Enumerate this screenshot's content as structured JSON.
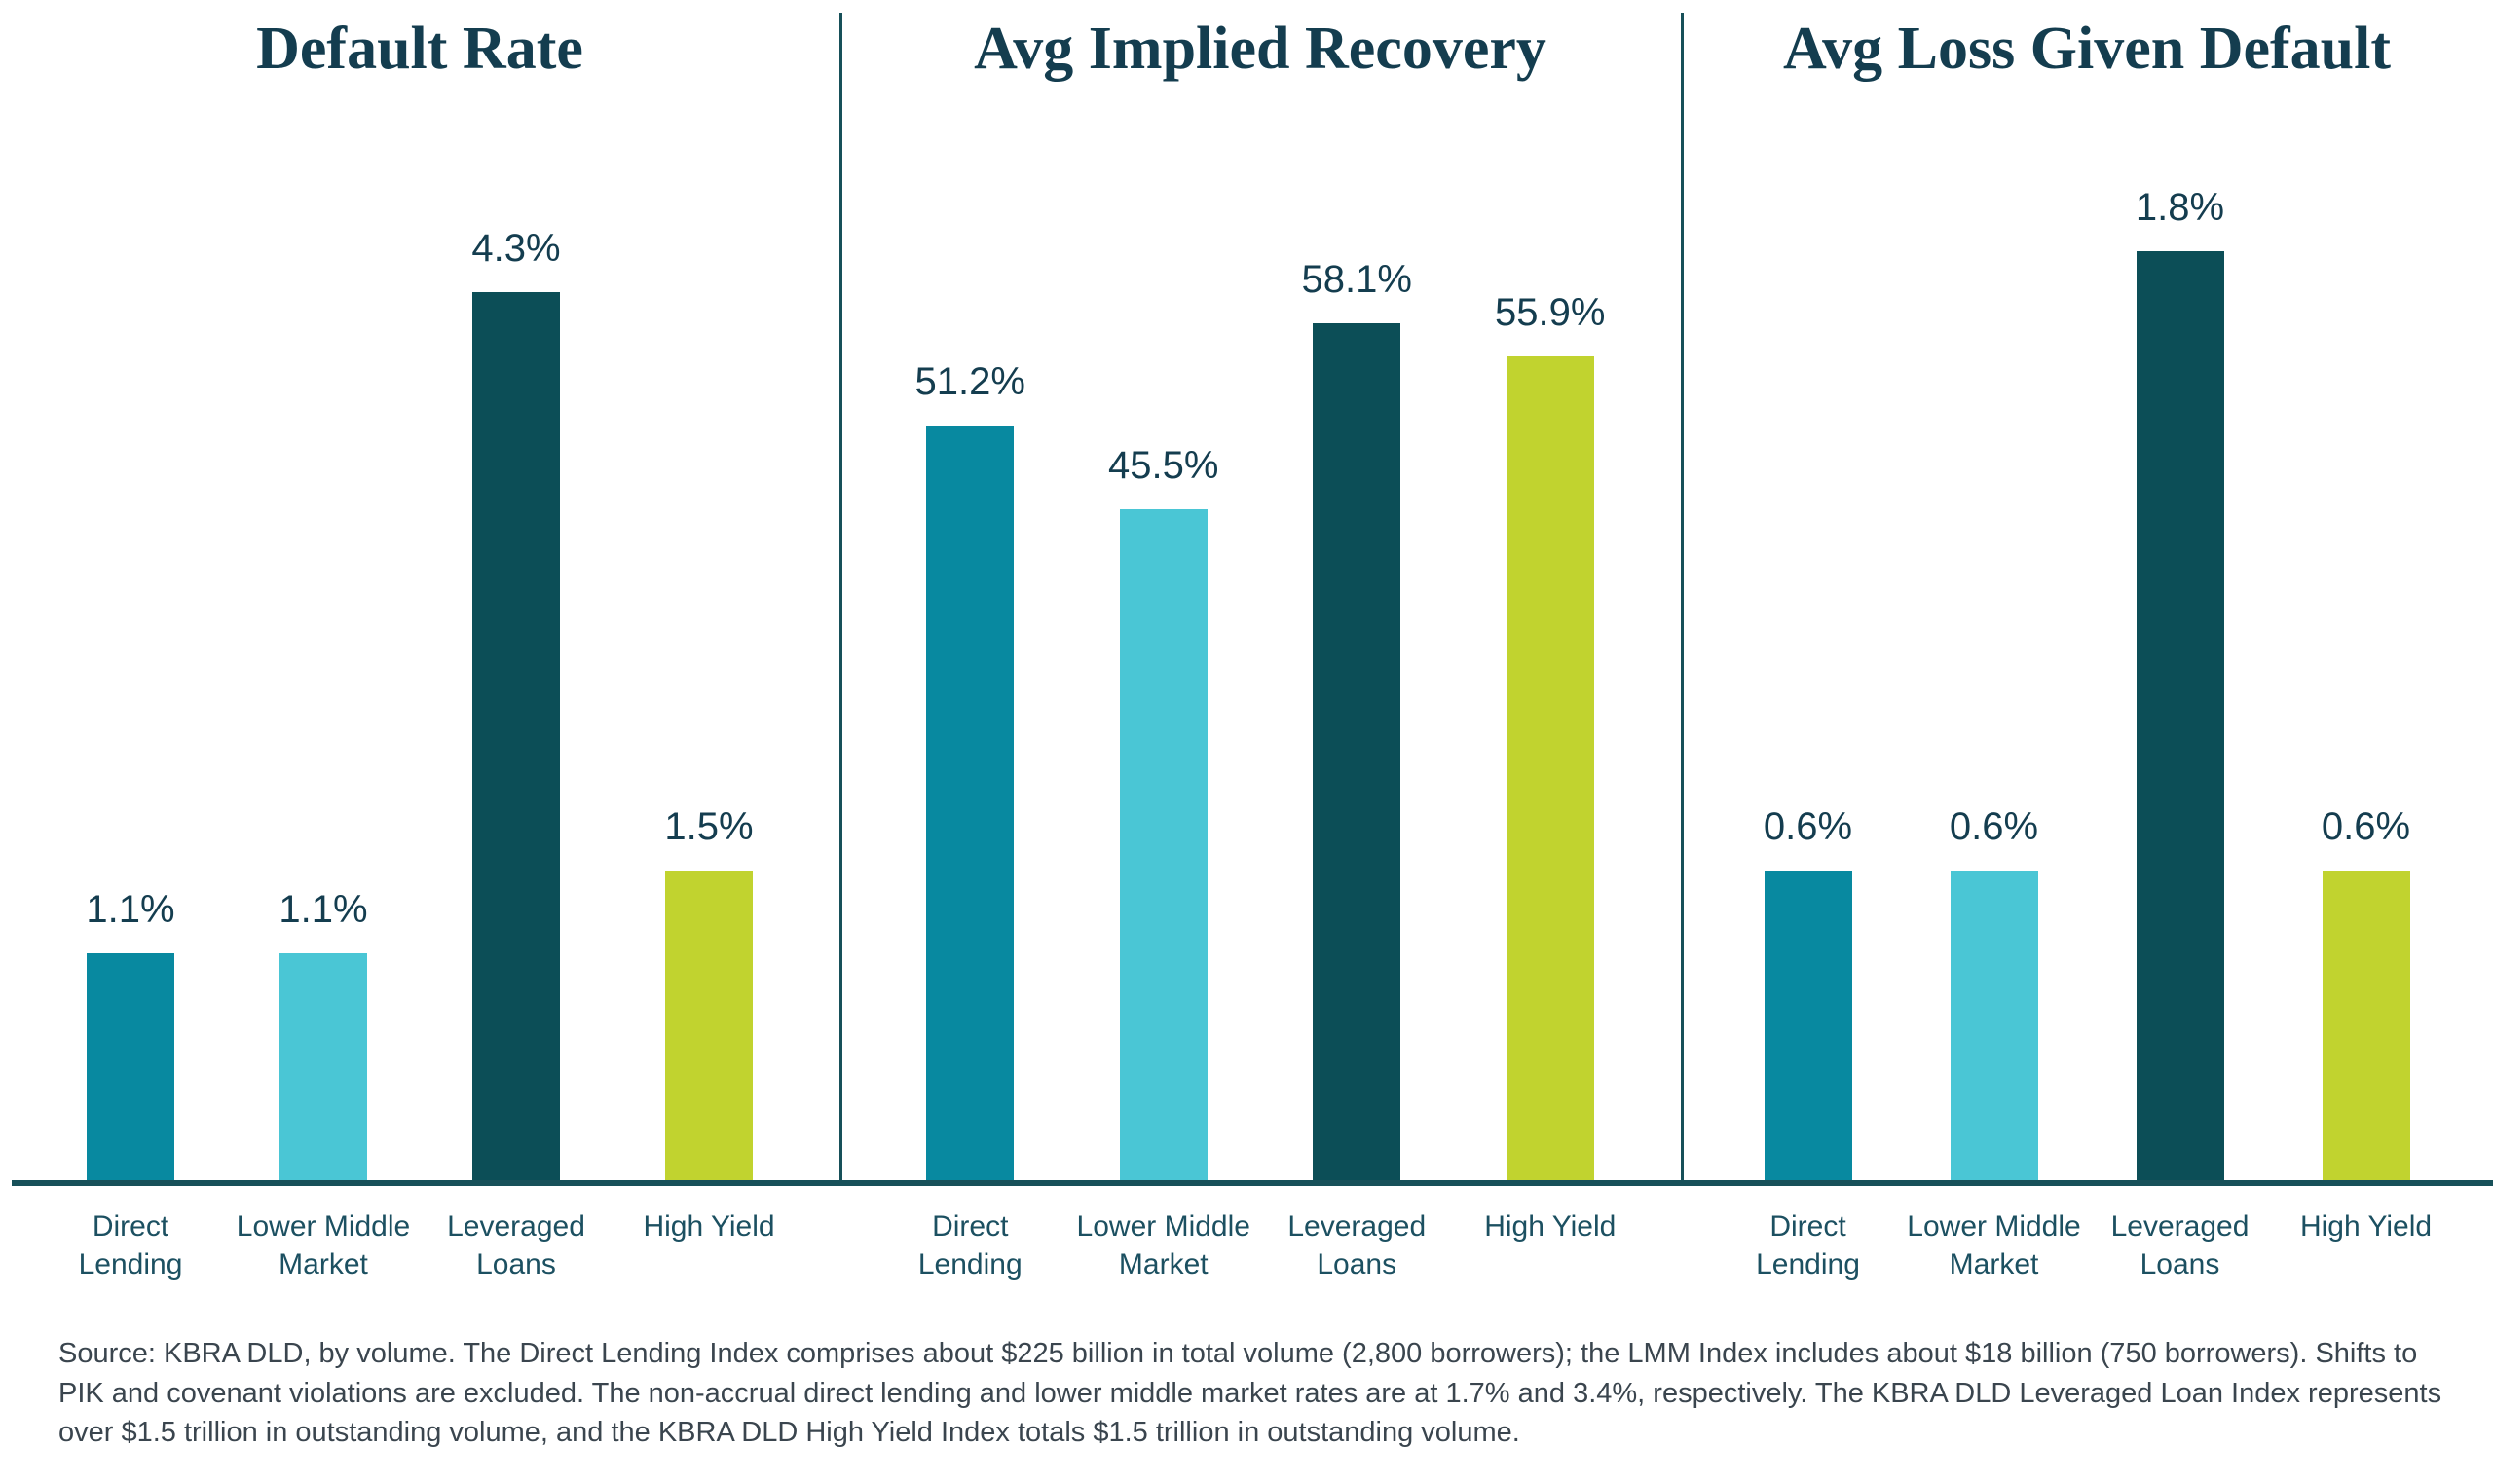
{
  "colors": {
    "direct_lending": "#0889A0",
    "lower_middle_market": "#4AC6D5",
    "leveraged_loans": "#0C4E57",
    "high_yield": "#C1D32F",
    "axis": "#175059",
    "title_text": "#143D4F",
    "value_text": "#143D4F",
    "category_text": "#1C5061",
    "source_text": "#3A454E"
  },
  "chart_data": [
    {
      "type": "bar",
      "title": "Default Rate",
      "categories": [
        "Direct Lending",
        "Lower Middle Market",
        "Leveraged Loans",
        "High Yield"
      ],
      "values": [
        1.1,
        1.1,
        4.3,
        1.5
      ],
      "value_labels": [
        "1.1%",
        "1.1%",
        "4.3%",
        "1.5%"
      ],
      "unit": "%",
      "ylim": [
        0,
        5
      ],
      "grid": false,
      "legend": "none",
      "bar_color_keys": [
        "direct_lending",
        "lower_middle_market",
        "leveraged_loans",
        "high_yield"
      ]
    },
    {
      "type": "bar",
      "title": "Avg Implied Recovery",
      "categories": [
        "Direct Lending",
        "Lower Middle Market",
        "Leveraged Loans",
        "High Yield"
      ],
      "values": [
        51.2,
        45.5,
        58.1,
        55.9
      ],
      "value_labels": [
        "51.2%",
        "45.5%",
        "58.1%",
        "55.9%"
      ],
      "unit": "%",
      "ylim": [
        0,
        70
      ],
      "grid": false,
      "legend": "none",
      "bar_color_keys": [
        "direct_lending",
        "lower_middle_market",
        "leveraged_loans",
        "high_yield"
      ]
    },
    {
      "type": "bar",
      "title": "Avg Loss Given Default",
      "categories": [
        "Direct Lending",
        "Lower Middle Market",
        "Leveraged Loans",
        "High Yield"
      ],
      "values": [
        0.6,
        0.6,
        1.8,
        0.6
      ],
      "value_labels": [
        "0.6%",
        "0.6%",
        "1.8%",
        "0.6%"
      ],
      "unit": "%",
      "ylim": [
        0,
        2
      ],
      "grid": false,
      "legend": "none",
      "bar_color_keys": [
        "direct_lending",
        "lower_middle_market",
        "leveraged_loans",
        "high_yield"
      ]
    }
  ],
  "source_note": "Source: KBRA DLD, by volume. The Direct Lending Index comprises about $225 billion in total volume (2,800 borrowers); the LMM Index includes about $18 billion (750 borrowers). Shifts to PIK and covenant violations are excluded. The non-accrual direct lending and lower middle market rates are at 1.7% and 3.4%, respectively. The KBRA DLD Leveraged Loan Index represents over $1.5 trillion in outstanding volume, and the KBRA DLD High Yield Index totals $1.5 trillion in outstanding volume."
}
